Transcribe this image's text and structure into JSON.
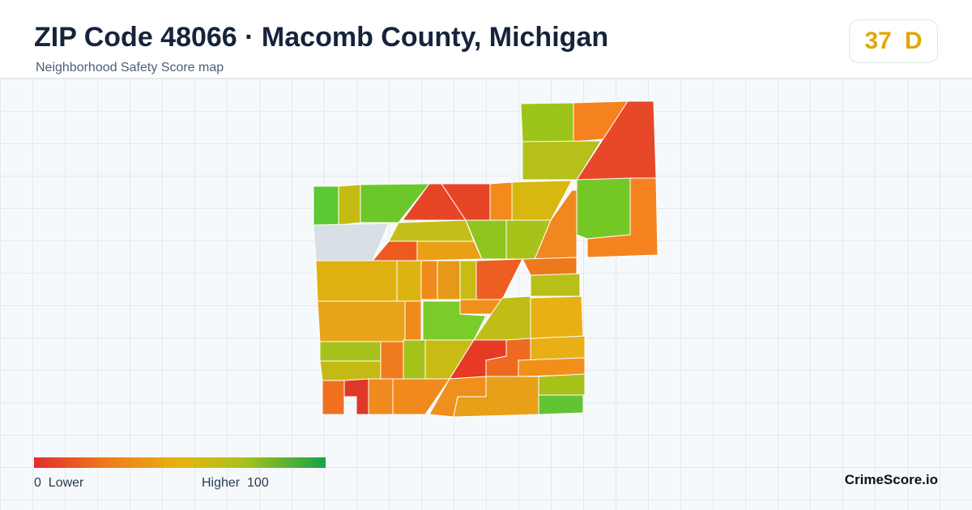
{
  "header": {
    "title": "ZIP Code 48066 · Macomb County, Michigan",
    "subtitle": "Neighborhood Safety Score map"
  },
  "score": {
    "value": 37,
    "grade": "D"
  },
  "legend": {
    "min": 0,
    "min_label": "Lower",
    "max_label": "Higher",
    "max": 100
  },
  "brand": "CrimeScore.io"
}
